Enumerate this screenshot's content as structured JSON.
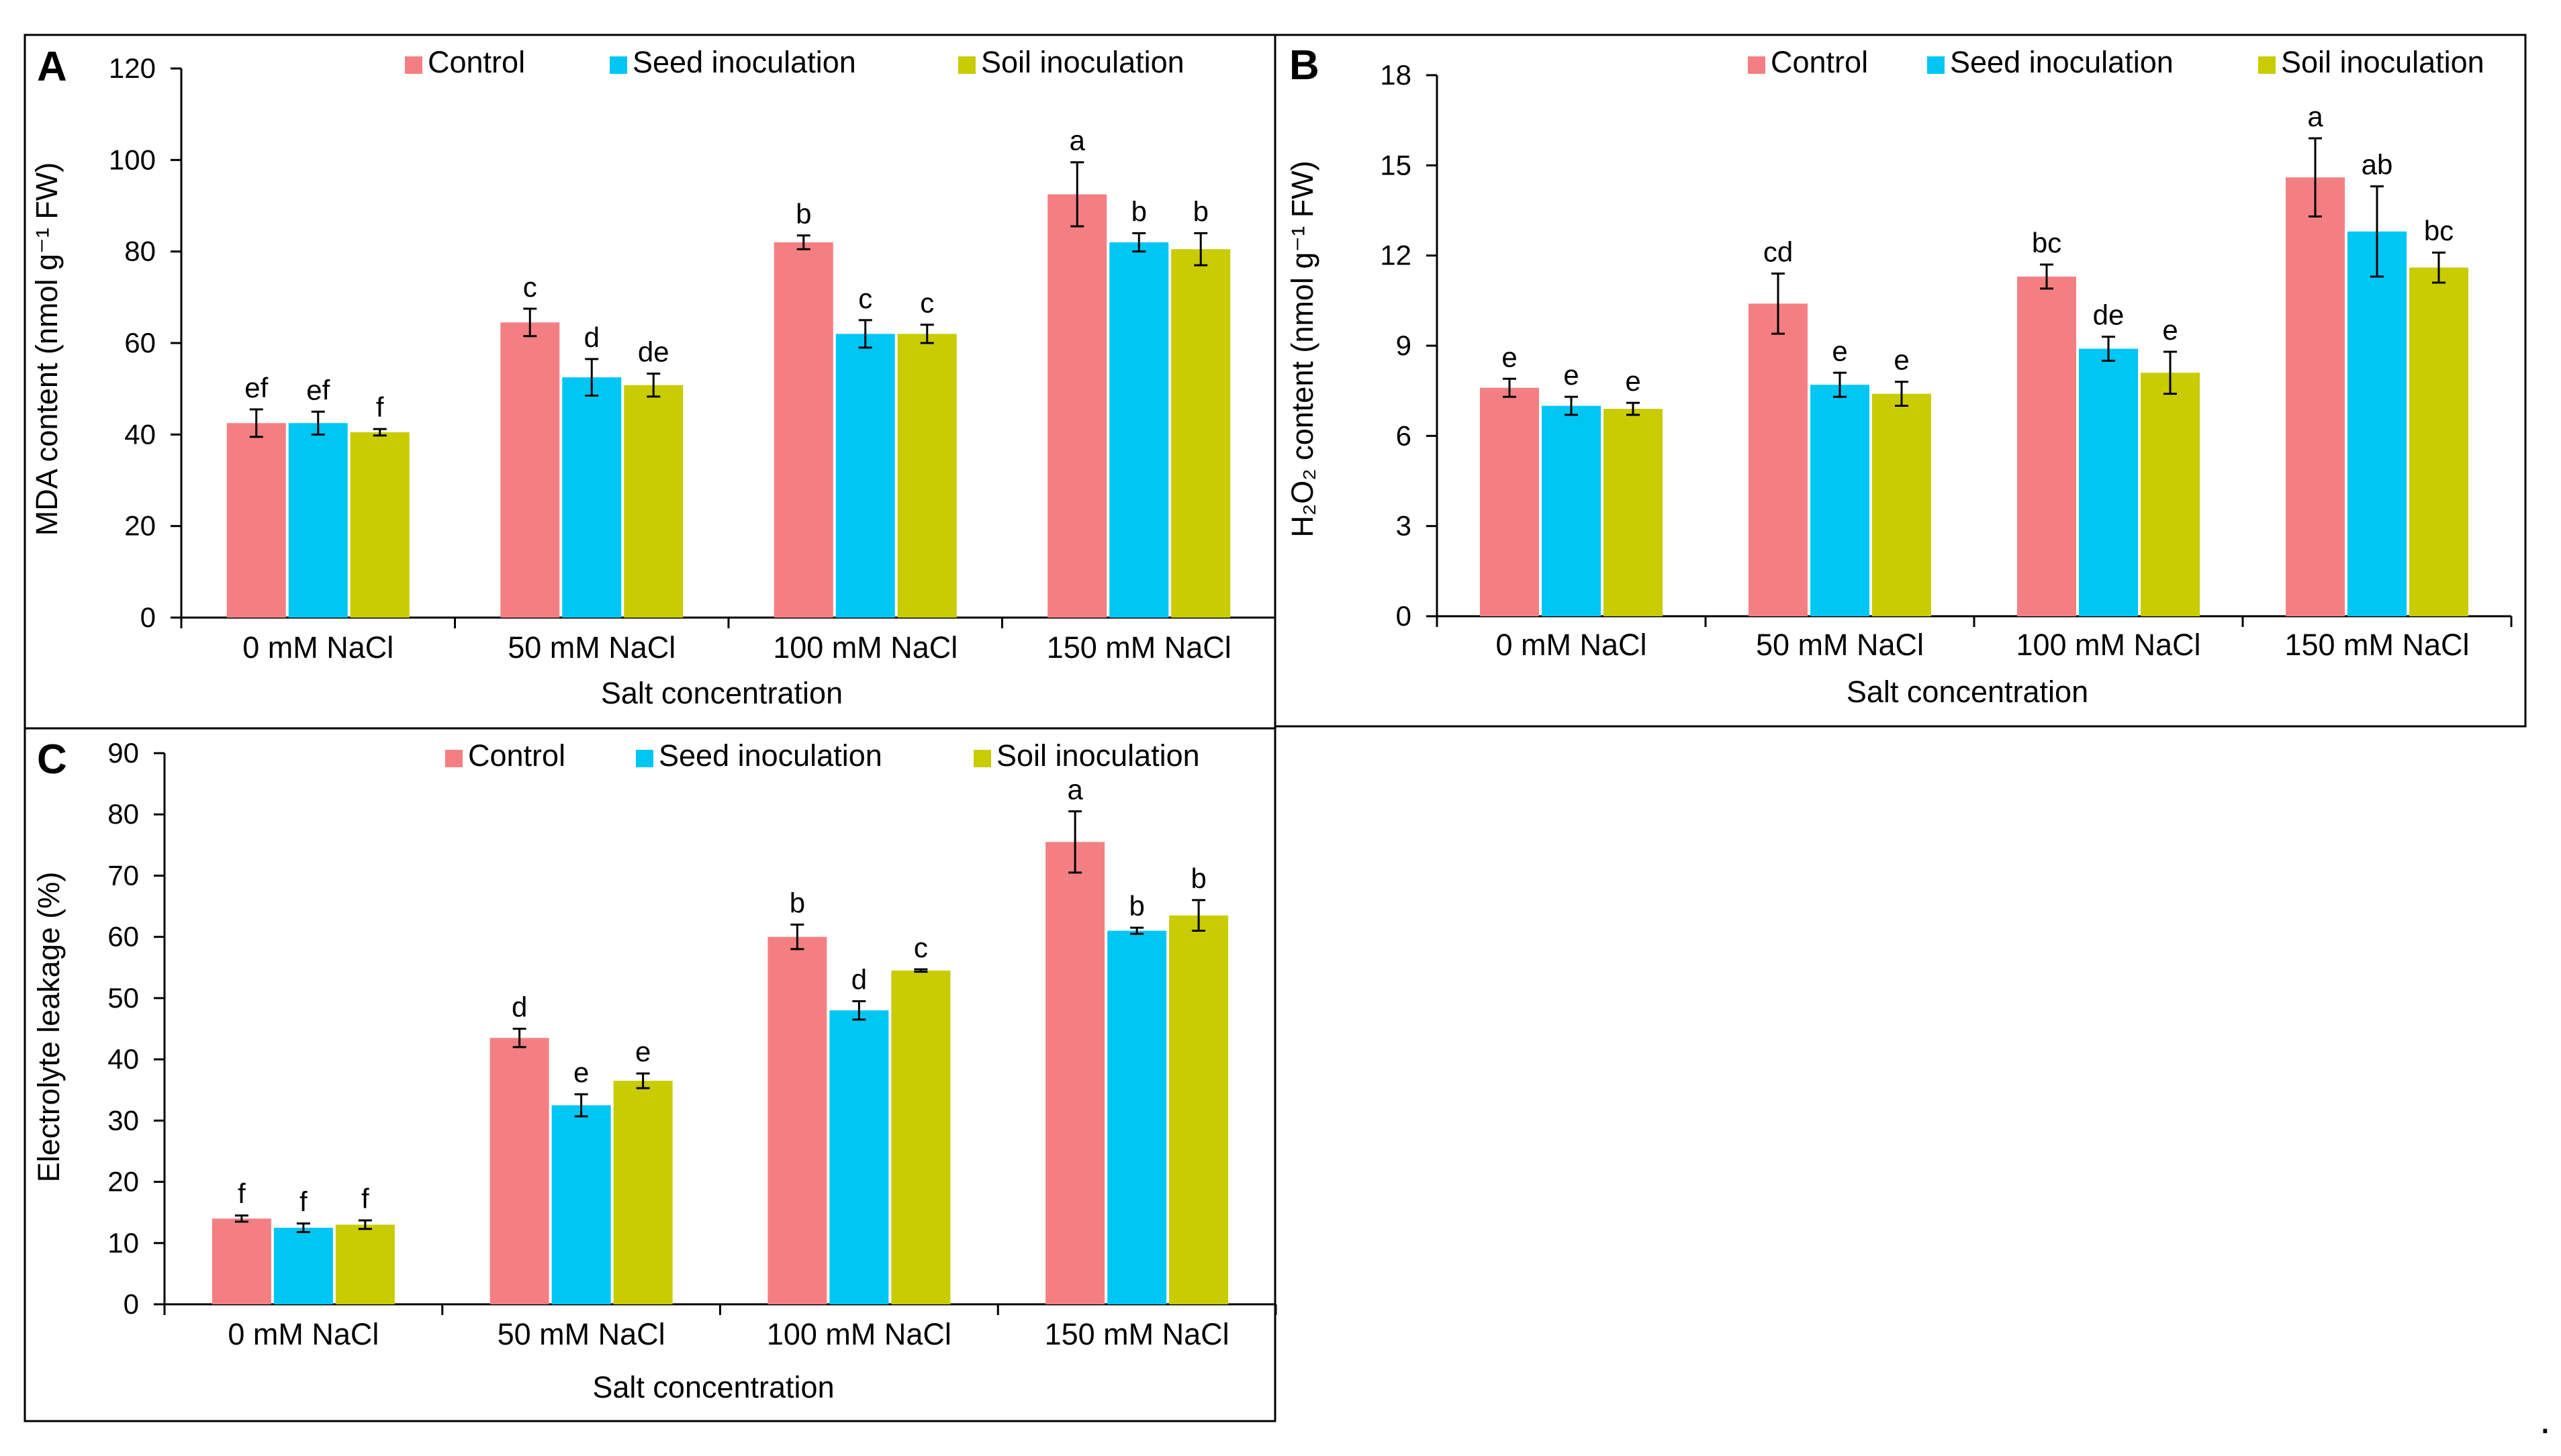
{
  "chart_data": [
    {
      "panel": "A",
      "type": "bar",
      "categories": [
        "0 mM NaCl",
        "50 mM NaCl",
        "100 mM NaCl",
        "150 mM NaCl"
      ],
      "series": [
        {
          "name": "Control",
          "color": "#f47f82",
          "values": [
            42.5,
            64.5,
            82,
            92.5
          ],
          "errors": [
            3,
            3,
            1.5,
            7
          ],
          "letters": [
            "ef",
            "c",
            "b",
            "a"
          ]
        },
        {
          "name": "Seed inoculation",
          "color": "#00c6f4",
          "values": [
            42.5,
            52.5,
            62,
            82
          ],
          "errors": [
            2.5,
            4,
            3,
            2
          ],
          "letters": [
            "ef",
            "d",
            "c",
            "b"
          ]
        },
        {
          "name": "Soil inoculation",
          "color": "#c8cc00",
          "values": [
            40.5,
            50.8,
            62,
            80.5
          ],
          "errors": [
            0.7,
            2.5,
            2,
            3.5
          ],
          "letters": [
            "f",
            "de",
            "c",
            "b"
          ]
        }
      ],
      "title": "",
      "xlabel": "Salt concentration",
      "ylabel": "MDA content (nmol g⁻¹ FW)",
      "ylim": [
        0,
        120
      ],
      "yticks": [
        0,
        20,
        40,
        60,
        80,
        100,
        120
      ],
      "legend": "top"
    },
    {
      "panel": "B",
      "type": "bar",
      "categories": [
        "0 mM NaCl",
        "50 mM NaCl",
        "100 mM NaCl",
        "150 mM NaCl"
      ],
      "series": [
        {
          "name": "Control",
          "color": "#f47f82",
          "values": [
            7.6,
            10.4,
            11.3,
            14.6
          ],
          "errors": [
            0.3,
            1,
            0.4,
            1.3
          ],
          "letters": [
            "e",
            "cd",
            "bc",
            "a"
          ]
        },
        {
          "name": "Seed inoculation",
          "color": "#00c6f4",
          "values": [
            7.0,
            7.7,
            8.9,
            12.8
          ],
          "errors": [
            0.3,
            0.4,
            0.4,
            1.5
          ],
          "letters": [
            "e",
            "e",
            "de",
            "ab"
          ]
        },
        {
          "name": "Soil inoculation",
          "color": "#c8cc00",
          "values": [
            6.9,
            7.4,
            8.1,
            11.6
          ],
          "errors": [
            0.2,
            0.4,
            0.7,
            0.5
          ],
          "letters": [
            "e",
            "e",
            "e",
            "bc"
          ]
        }
      ],
      "title": "",
      "xlabel": "Salt concentration",
      "ylabel": "H₂O₂ content (nmol g⁻¹ FW)",
      "ylim": [
        0,
        18
      ],
      "yticks": [
        0,
        3,
        6,
        9,
        12,
        15,
        18
      ],
      "legend": "top"
    },
    {
      "panel": "C",
      "type": "bar",
      "categories": [
        "0 mM NaCl",
        "50 mM NaCl",
        "100 mM NaCl",
        "150 mM NaCl"
      ],
      "series": [
        {
          "name": "Control",
          "color": "#f47f82",
          "values": [
            14,
            43.5,
            60,
            75.5
          ],
          "errors": [
            0.5,
            1.5,
            2,
            5
          ],
          "letters": [
            "f",
            "d",
            "b",
            "a"
          ]
        },
        {
          "name": "Seed inoculation",
          "color": "#00c6f4",
          "values": [
            12.5,
            32.5,
            48,
            61
          ],
          "errors": [
            0.7,
            1.8,
            1.5,
            0.5
          ],
          "letters": [
            "f",
            "e",
            "d",
            "b"
          ]
        },
        {
          "name": "Soil inoculation",
          "color": "#c8cc00",
          "values": [
            13,
            36.5,
            54.5,
            63.5
          ],
          "errors": [
            0.7,
            1.2,
            0.2,
            2.5
          ],
          "letters": [
            "f",
            "e",
            "c",
            "b"
          ]
        }
      ],
      "title": "",
      "xlabel": "Salt concentration",
      "ylabel": "Electrolyte leakage (%)",
      "ylim": [
        0,
        90
      ],
      "yticks": [
        0,
        10,
        20,
        30,
        40,
        50,
        60,
        70,
        80,
        90
      ],
      "legend": "top"
    }
  ],
  "trailing_mark": "."
}
